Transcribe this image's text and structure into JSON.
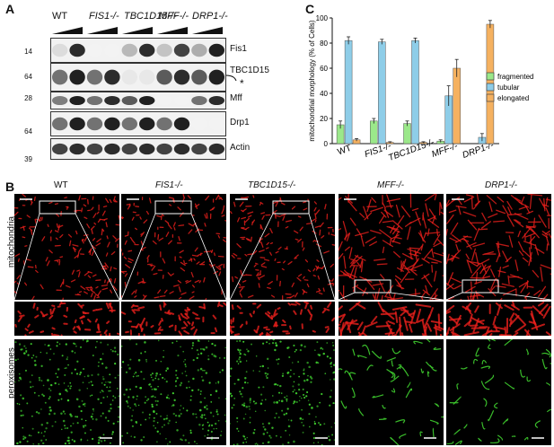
{
  "panels": {
    "a": "A",
    "b": "B",
    "c": "C"
  },
  "blot": {
    "genotypes": [
      "WT",
      "FIS1-/-",
      "TBC1D15-/-",
      "MFF-/-",
      "DRP1-/-"
    ],
    "rows": [
      {
        "protein": "Fis1",
        "mw": "14"
      },
      {
        "protein": "TBC1D15",
        "mw": "64",
        "marker": "*"
      },
      {
        "protein": "Mff",
        "mw": "28"
      },
      {
        "protein": "Drp1",
        "mw": "64"
      },
      {
        "protein": "Actin",
        "mw": "39"
      }
    ],
    "band_intensity": [
      [
        0.15,
        0.9,
        0.05,
        0.05,
        0.3,
        0.9,
        0.25,
        0.8,
        0.35,
        0.95
      ],
      [
        0.6,
        0.95,
        0.6,
        0.9,
        0.1,
        0.1,
        0.7,
        0.9,
        0.7,
        0.95
      ],
      [
        0.55,
        0.95,
        0.6,
        0.9,
        0.7,
        0.95,
        0.05,
        0.05,
        0.6,
        0.9
      ],
      [
        0.6,
        0.95,
        0.6,
        0.95,
        0.6,
        0.95,
        0.6,
        0.95,
        0.05,
        0.05
      ],
      [
        0.8,
        0.9,
        0.8,
        0.9,
        0.8,
        0.9,
        0.8,
        0.9,
        0.8,
        0.9
      ]
    ]
  },
  "images": {
    "columns": [
      "WT",
      "FIS1-/-",
      "TBC1D15-/-",
      "MFF-/-",
      "DRP1-/-"
    ],
    "row_labels": {
      "mito": "mitochondria",
      "perox": "peroxisomes"
    },
    "colors": {
      "mito": "#e8201c",
      "perox": "#3fcf2f"
    }
  },
  "chart_data": {
    "type": "bar",
    "categories": [
      "WT",
      "FIS1-/-",
      "TBC1D15-/-",
      "MFF-/-",
      "DRP1-/-"
    ],
    "series": [
      {
        "name": "fragmented",
        "color": "#9be88a",
        "values": [
          15,
          18,
          16,
          2,
          0
        ],
        "errors": [
          3,
          2,
          2,
          1,
          0
        ]
      },
      {
        "name": "tubular",
        "color": "#8ecde8",
        "values": [
          82,
          81,
          82,
          38,
          5
        ],
        "errors": [
          3,
          2,
          2,
          8,
          3
        ]
      },
      {
        "name": "elongated",
        "color": "#f5b160",
        "values": [
          3,
          1,
          1,
          60,
          95
        ],
        "errors": [
          1,
          0.5,
          0.5,
          7,
          3
        ]
      }
    ],
    "ylabel": "mitochondrial morphology (% of Cells)",
    "ylim": [
      0,
      100
    ],
    "yticks": [
      0,
      20,
      40,
      60,
      80,
      100
    ],
    "legend_position": "right"
  }
}
